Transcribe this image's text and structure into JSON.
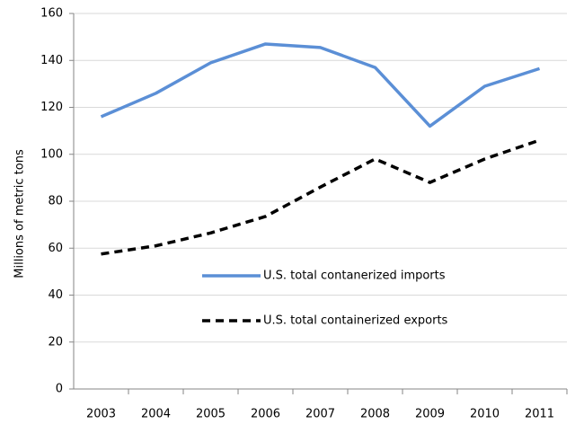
{
  "chart_data": {
    "type": "line",
    "y_label": "Millions of metric tons",
    "categories": [
      "2003",
      "2004",
      "2005",
      "2006",
      "2007",
      "2008",
      "2009",
      "2010",
      "2011"
    ],
    "series": [
      {
        "name": "U.S. total contanerized imports",
        "color": "#5b8fd6",
        "dash": false,
        "values": [
          116,
          126,
          139,
          147,
          145.5,
          137,
          112,
          129,
          136.5
        ]
      },
      {
        "name": "U.S. total containerized exports",
        "color": "#000000",
        "dash": true,
        "values": [
          57.5,
          61,
          66.5,
          73.5,
          86,
          98,
          88,
          98,
          106
        ]
      }
    ],
    "ylim": [
      0,
      160
    ],
    "yticks": [
      0,
      20,
      40,
      60,
      80,
      100,
      120,
      140,
      160
    ],
    "grid": true
  }
}
